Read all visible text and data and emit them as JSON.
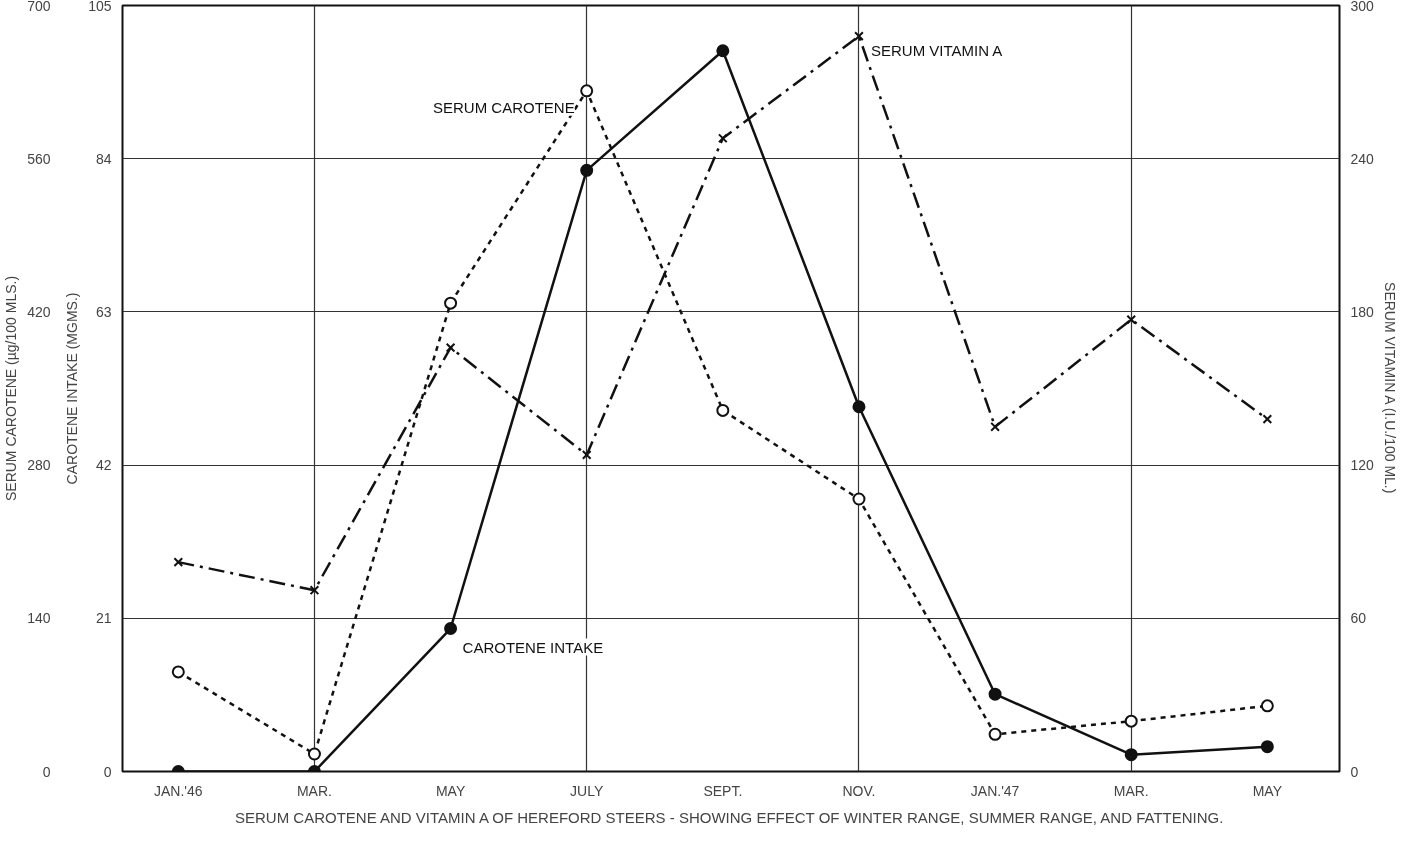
{
  "chart_data": {
    "type": "line",
    "title": "SERUM CAROTENE AND VITAMIN A OF HEREFORD STEERS - SHOWING EFFECT OF WINTER RANGE, SUMMER RANGE, AND FATTENING.",
    "ylabel": "SERUM CAROTENE (µg/100 MLS.)",
    "y3label": "CAROTENE INTAKE (MGMS.)",
    "y2label": "SERUM VITAMIN A (I.U./100 ML.)",
    "categories": [
      "JAN.'46",
      "MAR.",
      "MAY",
      "JULY",
      "SEPT.",
      "NOV.",
      "JAN.'47",
      "MAR.",
      "MAY"
    ],
    "ylim": [
      0,
      700
    ],
    "yticks": [
      0,
      140,
      280,
      420,
      560,
      700
    ],
    "y3lim": [
      0,
      105
    ],
    "y3ticks": [
      0,
      21,
      42,
      63,
      84,
      105
    ],
    "y2lim": [
      0,
      300
    ],
    "y2ticks": [
      0,
      60,
      120,
      180,
      240,
      300
    ],
    "grid": true,
    "series": [
      {
        "name": "SERUM CAROTENE",
        "color": "#111111",
        "marker": "circle",
        "line_style": "dotted",
        "values": [
          91,
          16,
          428,
          622,
          330,
          249,
          34,
          46,
          60
        ]
      },
      {
        "name": "CAROTENE INTAKE",
        "color": "#111111",
        "marker": "circle",
        "line_style": "solid",
        "axis": "y3",
        "values": [
          0,
          0,
          19.6,
          82.4,
          98.8,
          50.0,
          10.6,
          2.3,
          3.4
        ]
      },
      {
        "name": "SERUM VITAMIN A",
        "color": "#111111",
        "marker": "cross",
        "line_style": "dashed",
        "axis": "y2",
        "values": [
          82,
          71,
          166,
          124,
          248,
          288,
          135,
          177,
          138
        ]
      }
    ]
  }
}
